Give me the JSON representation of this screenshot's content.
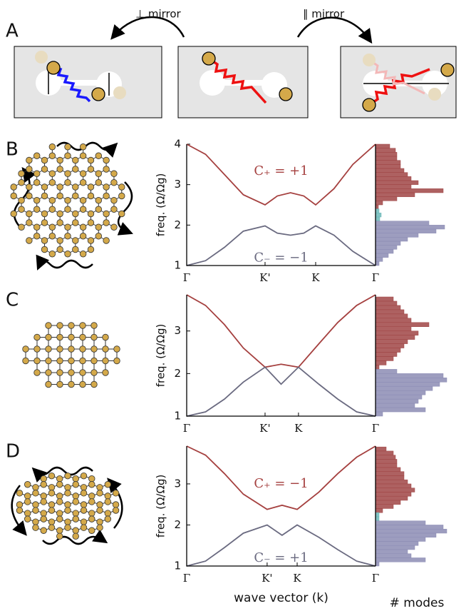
{
  "panel_A": {
    "label": "A",
    "left_arrow_label": "⊥ mirror",
    "right_arrow_label": "∥ mirror"
  },
  "chart_data": [
    {
      "type": "line",
      "panel_label": "B",
      "y_label": "freq. (Ω/Ωg)",
      "xlim": [
        0,
        1
      ],
      "ylim": [
        1,
        4
      ],
      "xticks": [
        {
          "value": 0,
          "label": "Γ"
        },
        {
          "value": 0.415,
          "label": "K'"
        },
        {
          "value": 0.683,
          "label": "K"
        },
        {
          "value": 1,
          "label": "Γ"
        }
      ],
      "yticks": [
        1,
        2,
        3,
        4
      ],
      "series": [
        {
          "color": "#a5403f",
          "x": [
            0,
            0.1,
            0.2,
            0.3,
            0.415,
            0.48,
            0.55,
            0.62,
            0.683,
            0.78,
            0.88,
            1
          ],
          "values": [
            4,
            3.75,
            3.25,
            2.75,
            2.5,
            2.72,
            2.8,
            2.72,
            2.5,
            2.9,
            3.5,
            4
          ]
        },
        {
          "color": "#6a6a80",
          "x": [
            0,
            0.1,
            0.2,
            0.3,
            0.415,
            0.48,
            0.55,
            0.62,
            0.683,
            0.78,
            0.88,
            1
          ],
          "values": [
            1,
            1.12,
            1.45,
            1.85,
            1.98,
            1.8,
            1.75,
            1.8,
            1.98,
            1.75,
            1.35,
            1
          ]
        }
      ],
      "annotations": [
        "C₊ = +1",
        "C₋ = −1"
      ],
      "histogram": {
        "series": [
          {
            "color": "#a04545",
            "bins": [
              2.4,
              2.5,
              2.6,
              2.7,
              2.8,
              2.9,
              3.0,
              3.1,
              3.2,
              3.3,
              3.4,
              3.5,
              3.6,
              3.7,
              3.8,
              3.9,
              4.0
            ],
            "counts": [
              0.04,
              0.1,
              0.3,
              0.55,
              0.95,
              0.5,
              0.6,
              0.5,
              0.45,
              0.4,
              0.35,
              0.35,
              0.3,
              0.3,
              0.28,
              0.2
            ]
          },
          {
            "color": "#6bb8b8",
            "bins": [
              2.1,
              2.2,
              2.3,
              2.4
            ],
            "counts": [
              0.06,
              0.08,
              0.05
            ]
          },
          {
            "color": "#8c8cb4",
            "bins": [
              1.0,
              1.1,
              1.2,
              1.3,
              1.4,
              1.5,
              1.6,
              1.7,
              1.8,
              1.9,
              2.0,
              2.1
            ],
            "counts": [
              0.05,
              0.1,
              0.18,
              0.25,
              0.3,
              0.35,
              0.45,
              0.6,
              0.85,
              0.97,
              0.75
            ]
          }
        ]
      }
    },
    {
      "type": "line",
      "panel_label": "C",
      "y_label": "freq. (Ω/Ωg)",
      "xlim": [
        0,
        1
      ],
      "ylim": [
        1,
        3.85
      ],
      "xticks": [
        {
          "value": 0,
          "label": "Γ"
        },
        {
          "value": 0.415,
          "label": "K'"
        },
        {
          "value": 0.592,
          "label": "K"
        },
        {
          "value": 1,
          "label": "Γ"
        }
      ],
      "yticks": [
        1,
        2,
        3
      ],
      "series": [
        {
          "color": "#a5403f",
          "x": [
            0,
            0.1,
            0.2,
            0.3,
            0.415,
            0.5,
            0.592,
            0.7,
            0.8,
            0.9,
            1
          ],
          "values": [
            3.85,
            3.6,
            3.15,
            2.6,
            2.15,
            2.22,
            2.15,
            2.7,
            3.2,
            3.6,
            3.85
          ]
        },
        {
          "color": "#6a6a80",
          "x": [
            0,
            0.1,
            0.2,
            0.3,
            0.415,
            0.5,
            0.592,
            0.7,
            0.8,
            0.9,
            1
          ],
          "values": [
            1,
            1.1,
            1.4,
            1.8,
            2.15,
            1.75,
            2.15,
            1.75,
            1.4,
            1.1,
            1
          ]
        }
      ],
      "histogram": {
        "series": [
          {
            "color": "#a04545",
            "bins": [
              2.1,
              2.2,
              2.3,
              2.4,
              2.5,
              2.6,
              2.7,
              2.8,
              2.9,
              3.0,
              3.1,
              3.2,
              3.3,
              3.4,
              3.5,
              3.6,
              3.7,
              3.8
            ],
            "counts": [
              0.05,
              0.15,
              0.25,
              0.3,
              0.35,
              0.4,
              0.45,
              0.55,
              0.6,
              0.5,
              0.75,
              0.5,
              0.45,
              0.4,
              0.35,
              0.3,
              0.25
            ]
          },
          {
            "color": "#8c8cb4",
            "bins": [
              1.0,
              1.1,
              1.2,
              1.3,
              1.4,
              1.5,
              1.6,
              1.7,
              1.8,
              1.9,
              2.0,
              2.1
            ],
            "counts": [
              0.1,
              0.7,
              0.55,
              0.6,
              0.65,
              0.7,
              0.8,
              0.9,
              1.0,
              0.95,
              0.3
            ]
          }
        ]
      }
    },
    {
      "type": "line",
      "panel_label": "D",
      "y_label": "freq. (Ω/Ωg)",
      "x_label": "wave vector (k)",
      "hist_label": "# modes",
      "xlim": [
        0,
        1
      ],
      "ylim": [
        1,
        3.92
      ],
      "xticks": [
        {
          "value": 0,
          "label": "Γ"
        },
        {
          "value": 0.426,
          "label": "K'"
        },
        {
          "value": 0.585,
          "label": "K"
        },
        {
          "value": 1,
          "label": "Γ"
        }
      ],
      "yticks": [
        1,
        2,
        3
      ],
      "series": [
        {
          "color": "#a5403f",
          "x": [
            0,
            0.1,
            0.2,
            0.3,
            0.426,
            0.505,
            0.585,
            0.7,
            0.8,
            0.9,
            1
          ],
          "values": [
            3.92,
            3.7,
            3.25,
            2.75,
            2.38,
            2.48,
            2.38,
            2.8,
            3.25,
            3.65,
            3.92
          ]
        },
        {
          "color": "#6a6a80",
          "x": [
            0,
            0.1,
            0.2,
            0.3,
            0.426,
            0.505,
            0.585,
            0.7,
            0.8,
            0.9,
            1
          ],
          "values": [
            1,
            1.12,
            1.45,
            1.8,
            2.0,
            1.75,
            2.0,
            1.7,
            1.4,
            1.12,
            1
          ]
        }
      ],
      "annotations": [
        "C₊ = −1",
        "C₋ = +1"
      ],
      "histogram": {
        "series": [
          {
            "color": "#a04545",
            "bins": [
              2.3,
              2.4,
              2.5,
              2.6,
              2.7,
              2.8,
              2.9,
              3.0,
              3.1,
              3.2,
              3.3,
              3.4,
              3.5,
              3.6,
              3.7,
              3.8,
              3.9
            ],
            "counts": [
              0.1,
              0.25,
              0.35,
              0.45,
              0.5,
              0.55,
              0.5,
              0.45,
              0.4,
              0.4,
              0.35,
              0.3,
              0.3,
              0.28,
              0.25,
              0.15
            ]
          },
          {
            "color": "#6bb8b8",
            "bins": [
              2.1,
              2.2,
              2.3
            ],
            "counts": [
              0.05,
              0.05
            ]
          },
          {
            "color": "#8c8cb4",
            "bins": [
              1.0,
              1.1,
              1.2,
              1.3,
              1.4,
              1.5,
              1.6,
              1.7,
              1.8,
              1.9,
              2.0,
              2.1
            ],
            "counts": [
              0.05,
              0.7,
              0.5,
              0.45,
              0.55,
              0.6,
              0.7,
              0.85,
              1.0,
              0.95,
              0.7
            ]
          }
        ]
      }
    }
  ]
}
